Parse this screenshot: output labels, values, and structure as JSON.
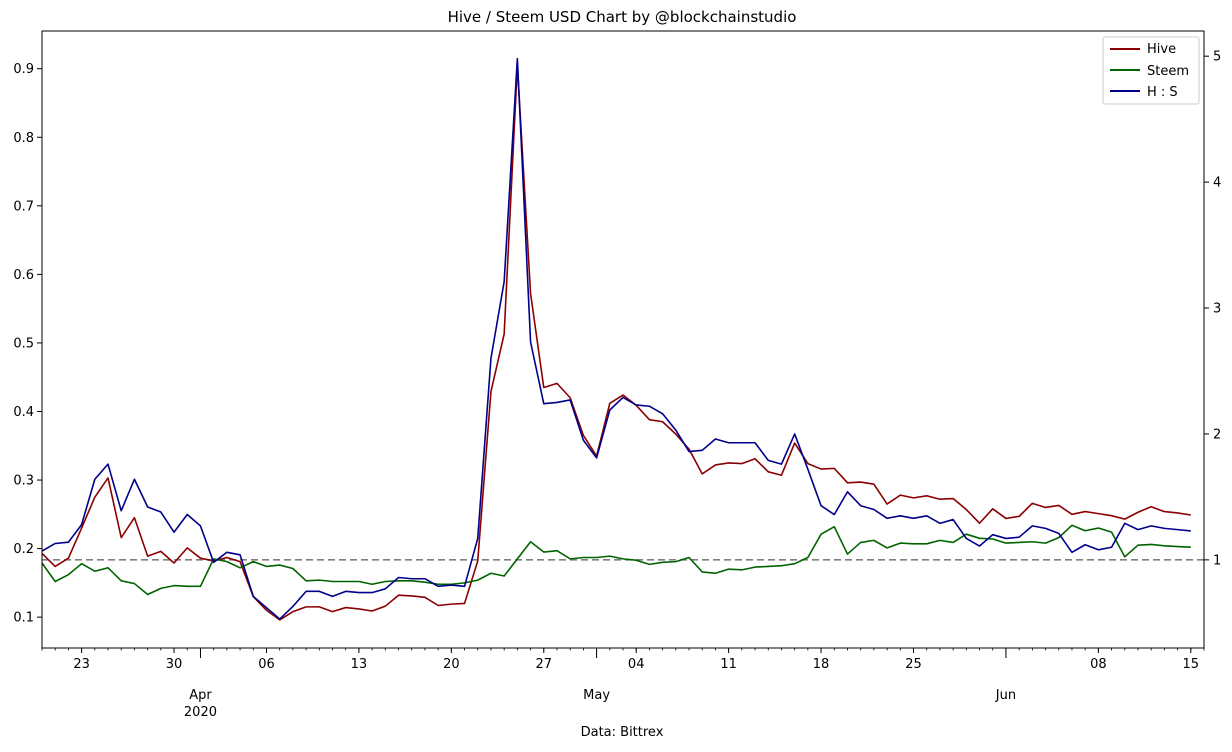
{
  "chart_data": {
    "type": "line",
    "title": "Hive / Steem USD Chart by @blockchainstudio",
    "xlabel": "Data: Bittrex",
    "x_start": "2020-03-20",
    "x_end": "2020-06-16",
    "x_ticks_major": [
      {
        "date": "2020-03-23",
        "label": "23"
      },
      {
        "date": "2020-03-30",
        "label": "30"
      },
      {
        "date": "2020-04-06",
        "label": "06"
      },
      {
        "date": "2020-04-13",
        "label": "13"
      },
      {
        "date": "2020-04-20",
        "label": "20"
      },
      {
        "date": "2020-04-27",
        "label": "27"
      },
      {
        "date": "2020-05-04",
        "label": "04"
      },
      {
        "date": "2020-05-11",
        "label": "11"
      },
      {
        "date": "2020-05-18",
        "label": "18"
      },
      {
        "date": "2020-05-25",
        "label": "25"
      },
      {
        "date": "2020-06-08",
        "label": "08"
      },
      {
        "date": "2020-06-15",
        "label": "15"
      }
    ],
    "x_ticks_month": [
      {
        "date": "2020-04-01",
        "label": "Apr",
        "sub": "2020"
      },
      {
        "date": "2020-05-01",
        "label": "May",
        "sub": ""
      },
      {
        "date": "2020-06-01",
        "label": "Jun",
        "sub": ""
      }
    ],
    "y_left": {
      "ylim": [
        0.055,
        0.955
      ],
      "ticks": [
        "0.1",
        "0.2",
        "0.3",
        "0.4",
        "0.5",
        "0.6",
        "0.7",
        "0.8",
        "0.9"
      ]
    },
    "y_right": {
      "ylim": [
        0.3,
        5.2
      ],
      "ticks": [
        "1",
        "2",
        "3",
        "4",
        "5"
      ]
    },
    "reference_line": {
      "axis": "right",
      "value": 1,
      "style": "dashed",
      "color": "#808080"
    },
    "legend": {
      "position": "top-right"
    },
    "series": [
      {
        "name": "Hive",
        "axis": "left",
        "color": "#8b0000",
        "values": [
          0.193,
          0.174,
          0.186,
          0.23,
          0.275,
          0.303,
          0.216,
          0.245,
          0.189,
          0.196,
          0.179,
          0.201,
          0.186,
          0.182,
          0.187,
          0.181,
          0.13,
          0.11,
          0.096,
          0.108,
          0.115,
          0.115,
          0.108,
          0.114,
          0.112,
          0.109,
          0.116,
          0.132,
          0.131,
          0.129,
          0.117,
          0.119,
          0.12,
          0.182,
          0.429,
          0.513,
          0.905,
          0.572,
          0.435,
          0.441,
          0.42,
          0.365,
          0.335,
          0.412,
          0.424,
          0.409,
          0.388,
          0.385,
          0.367,
          0.345,
          0.309,
          0.322,
          0.325,
          0.324,
          0.331,
          0.312,
          0.307,
          0.354,
          0.324,
          0.316,
          0.317,
          0.296,
          0.297,
          0.294,
          0.265,
          0.278,
          0.274,
          0.277,
          0.272,
          0.273,
          0.257,
          0.237,
          0.258,
          0.244,
          0.247,
          0.266,
          0.26,
          0.263,
          0.25,
          0.254,
          0.251,
          0.248,
          0.243,
          0.253,
          0.261,
          0.254,
          0.252,
          0.249
        ]
      },
      {
        "name": "Steem",
        "axis": "left",
        "color": "#006400",
        "values": [
          0.179,
          0.152,
          0.162,
          0.178,
          0.167,
          0.172,
          0.153,
          0.149,
          0.133,
          0.142,
          0.146,
          0.145,
          0.145,
          0.185,
          0.181,
          0.172,
          0.181,
          0.174,
          0.176,
          0.171,
          0.153,
          0.154,
          0.152,
          0.152,
          0.152,
          0.148,
          0.152,
          0.153,
          0.153,
          0.151,
          0.148,
          0.148,
          0.15,
          0.154,
          0.164,
          0.16,
          0.185,
          0.21,
          0.195,
          0.197,
          0.185,
          0.187,
          0.187,
          0.189,
          0.185,
          0.183,
          0.177,
          0.18,
          0.181,
          0.187,
          0.166,
          0.164,
          0.17,
          0.169,
          0.173,
          0.174,
          0.175,
          0.178,
          0.187,
          0.221,
          0.232,
          0.192,
          0.209,
          0.212,
          0.201,
          0.208,
          0.207,
          0.207,
          0.212,
          0.209,
          0.221,
          0.215,
          0.214,
          0.208,
          0.209,
          0.21,
          0.208,
          0.216,
          0.234,
          0.226,
          0.23,
          0.224,
          0.188,
          0.205,
          0.206,
          0.204,
          0.203,
          0.202
        ]
      },
      {
        "name": "H : S",
        "axis": "right",
        "color": "#00008b",
        "values": [
          1.07,
          1.13,
          1.14,
          1.28,
          1.64,
          1.76,
          1.39,
          1.64,
          1.42,
          1.38,
          1.22,
          1.36,
          1.27,
          0.98,
          1.06,
          1.04,
          0.71,
          0.62,
          0.53,
          0.63,
          0.75,
          0.75,
          0.71,
          0.75,
          0.74,
          0.74,
          0.77,
          0.86,
          0.85,
          0.85,
          0.79,
          0.8,
          0.79,
          1.17,
          2.6,
          3.21,
          4.98,
          2.73,
          2.24,
          2.25,
          2.27,
          1.95,
          1.81,
          2.19,
          2.29,
          2.23,
          2.22,
          2.16,
          2.03,
          1.86,
          1.87,
          1.96,
          1.93,
          1.93,
          1.93,
          1.79,
          1.76,
          2.0,
          1.72,
          1.43,
          1.36,
          1.54,
          1.43,
          1.4,
          1.33,
          1.35,
          1.33,
          1.35,
          1.29,
          1.32,
          1.17,
          1.11,
          1.2,
          1.17,
          1.18,
          1.27,
          1.25,
          1.21,
          1.06,
          1.12,
          1.08,
          1.1,
          1.29,
          1.24,
          1.27,
          1.25,
          1.24,
          1.23
        ]
      }
    ]
  }
}
